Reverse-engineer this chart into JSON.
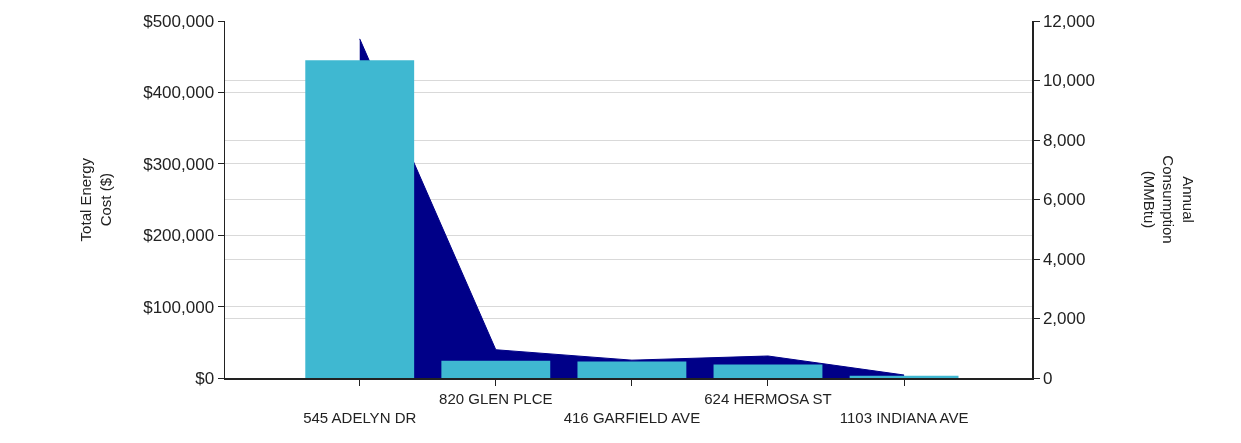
{
  "chart_data": {
    "type": "bar",
    "categories": [
      "545 ADELYN DR",
      "820 GLEN PLCE",
      "416 GARFIELD AVE",
      "624 HERMOSA ST",
      "1103 INDIANA AVE"
    ],
    "series": [
      {
        "type": "area",
        "axis": "y2",
        "color": "#000088",
        "values": [
          11400,
          950,
          600,
          740,
          100
        ]
      },
      {
        "color": "#3fb8d1",
        "values": [
          445000,
          24000,
          23000,
          19000,
          3000
        ]
      }
    ],
    "ylabel": "Total Energy Cost ($)",
    "y2label": "Annual Consumption (MMBtu)",
    "ylim": [
      0,
      500000
    ],
    "yticks": [
      {
        "value": 0,
        "label": "$0"
      },
      {
        "value": 100000,
        "label": "$100,000"
      },
      {
        "value": 200000,
        "label": "$200,000"
      },
      {
        "value": 300000,
        "label": "$300,000"
      },
      {
        "value": 400000,
        "label": "$400,000"
      },
      {
        "value": 500000,
        "label": "$500,000"
      }
    ],
    "y2lim": [
      0,
      12000
    ],
    "y2ticks": [
      0,
      {
        "value": 2000,
        "label": "2,000"
      },
      {
        "value": 4000,
        "label": "4,000"
      },
      {
        "value": 6000,
        "label": "6,000"
      },
      {
        "value": 8000,
        "label": "8,000"
      },
      {
        "value": 10000,
        "label": "10,000"
      },
      {
        "value": 12000,
        "label": "12,000"
      }
    ],
    "grid": "y"
  }
}
